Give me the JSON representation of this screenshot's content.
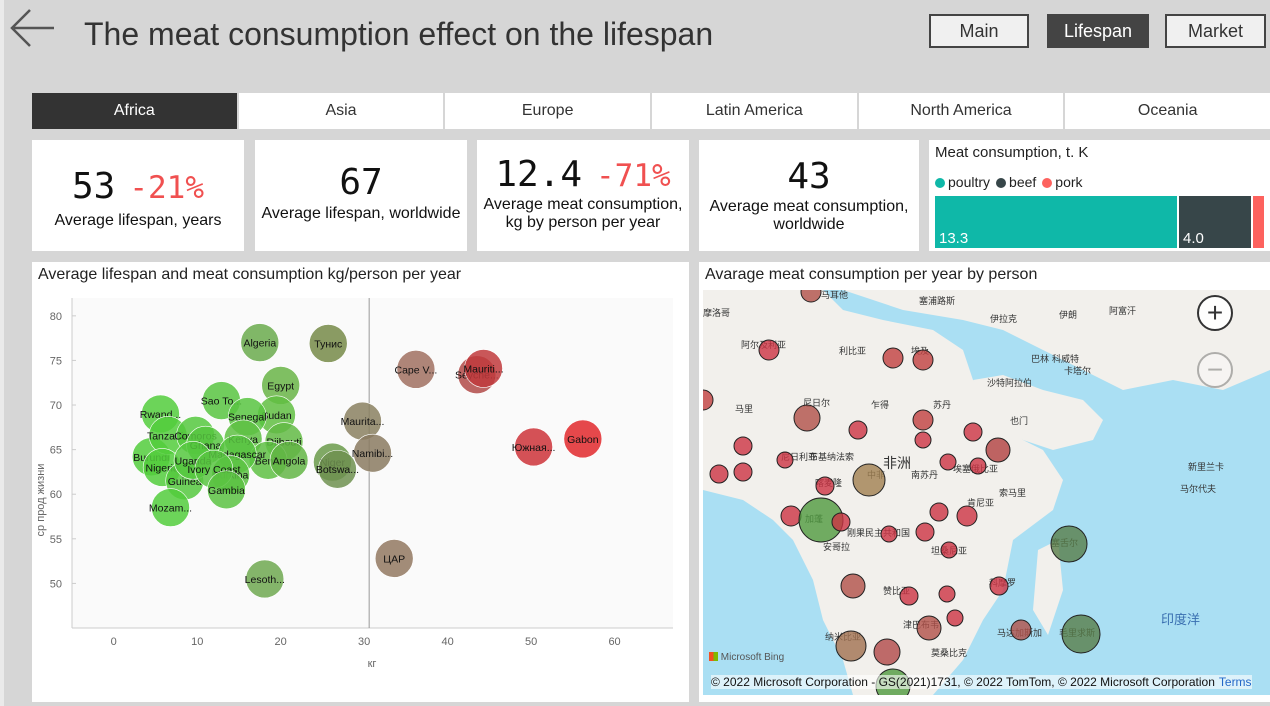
{
  "header": {
    "title": "The meat consumption effect on the lifespan",
    "nav": [
      {
        "label": "Main",
        "active": false
      },
      {
        "label": "Lifespan",
        "active": true
      },
      {
        "label": "Market",
        "active": false
      }
    ]
  },
  "tabs": [
    {
      "label": "Africa",
      "active": true
    },
    {
      "label": "Asia",
      "active": false
    },
    {
      "label": "Europe",
      "active": false
    },
    {
      "label": "Latin America",
      "active": false
    },
    {
      "label": "North America",
      "active": false
    },
    {
      "label": "Oceania",
      "active": false
    }
  ],
  "kpis": {
    "lifespan": {
      "value": "53",
      "delta": "-21%",
      "label": "Average lifespan, years"
    },
    "lifespan_world": {
      "value": "67",
      "label": "Average lifespan, worldwide"
    },
    "meat": {
      "value": "12.4",
      "delta": "-71%",
      "label_line1": "Average meat consumption,",
      "label_line2": "kg by person per year"
    },
    "meat_world": {
      "value": "43",
      "label_line1": "Average meat consumption,",
      "label_line2": "worldwide"
    }
  },
  "meat_panel": {
    "title": "Meat consumption, t. K",
    "legend": [
      "poultry",
      "beef",
      "pork"
    ],
    "colors": {
      "poultry": "#0fb8a8",
      "beef": "#374649",
      "pork": "#fd625e"
    },
    "values_display": [
      "13.3",
      "4.0",
      ""
    ]
  },
  "chart_data": {
    "type": "scatter",
    "title": "Average lifespan and meat consumption kg/person per year",
    "xlabel": "кг",
    "ylabel": "ср прод жизни",
    "xlim": [
      -5,
      67
    ],
    "ylim": [
      45,
      82
    ],
    "xticks": [
      0,
      10,
      20,
      30,
      40,
      50,
      60
    ],
    "yticks": [
      50,
      55,
      60,
      65,
      70,
      75,
      80
    ],
    "reference_x": 30.6,
    "points": [
      {
        "label": "Algeria",
        "x": 17.5,
        "y": 77.0,
        "color": "#6aaa4c"
      },
      {
        "label": "Тунис",
        "x": 25.7,
        "y": 76.9,
        "color": "#758a48"
      },
      {
        "label": "Egypt",
        "x": 20.0,
        "y": 72.2,
        "color": "#68b447"
      },
      {
        "label": "Sao To...",
        "x": 12.9,
        "y": 70.5,
        "color": "#58c441"
      },
      {
        "label": "Sudan",
        "x": 19.5,
        "y": 68.9,
        "color": "#60be42"
      },
      {
        "label": "Rwand...",
        "x": 5.6,
        "y": 69.0,
        "color": "#52cc3c"
      },
      {
        "label": "Senegal",
        "x": 16.0,
        "y": 68.7,
        "color": "#58c441"
      },
      {
        "label": "Kenya",
        "x": 15.5,
        "y": 66.2,
        "color": "#5ec043"
      },
      {
        "label": "Djibouti",
        "x": 20.4,
        "y": 65.9,
        "color": "#62ba44"
      },
      {
        "label": "Benin",
        "x": 18.5,
        "y": 63.8,
        "color": "#5ec043"
      },
      {
        "label": "Angola",
        "x": 21.0,
        "y": 63.8,
        "color": "#63b545"
      },
      {
        "label": "Niger",
        "x": 26.2,
        "y": 63.6,
        "color": "#6a9a4a"
      },
      {
        "label": "Botswa...",
        "x": 26.8,
        "y": 62.8,
        "color": "#6e9050"
      },
      {
        "label": "Maurita...",
        "x": 29.8,
        "y": 68.2,
        "color": "#8a8060"
      },
      {
        "label": "Namibi...",
        "x": 31.0,
        "y": 64.6,
        "color": "#8a7a60"
      },
      {
        "label": "Burundi",
        "x": 4.5,
        "y": 64.2,
        "color": "#52cc3c"
      },
      {
        "label": "Tanzania",
        "x": 6.5,
        "y": 66.6,
        "color": "#52cc3c"
      },
      {
        "label": "Comoros",
        "x": 9.8,
        "y": 66.6,
        "color": "#55c83e"
      },
      {
        "label": "Ghana",
        "x": 11.0,
        "y": 65.5,
        "color": "#56c63f"
      },
      {
        "label": "Nigeria",
        "x": 5.8,
        "y": 63.0,
        "color": "#52cc3c"
      },
      {
        "label": "Guinea",
        "x": 8.5,
        "y": 61.5,
        "color": "#55c83e"
      },
      {
        "label": "Uganda",
        "x": 9.5,
        "y": 63.8,
        "color": "#55c83e"
      },
      {
        "label": "Madagascar",
        "x": 14.8,
        "y": 64.5,
        "color": "#58c441"
      },
      {
        "label": "Burkina",
        "x": 14.0,
        "y": 62.2,
        "color": "#5bc242"
      },
      {
        "label": "Ivory Coast",
        "x": 12.0,
        "y": 62.8,
        "color": "#58c441"
      },
      {
        "label": "Gambia",
        "x": 13.5,
        "y": 60.5,
        "color": "#5bc242"
      },
      {
        "label": "Mozam...",
        "x": 6.8,
        "y": 58.5,
        "color": "#52cc3c"
      },
      {
        "label": "Cape V...",
        "x": 36.2,
        "y": 74.0,
        "color": "#a07060"
      },
      {
        "label": "Seyche...",
        "x": 43.5,
        "y": 73.4,
        "color": "#b04a48"
      },
      {
        "label": "Mauriti...",
        "x": 44.3,
        "y": 74.1,
        "color": "#c0393c"
      },
      {
        "label": "Южная...",
        "x": 50.3,
        "y": 65.3,
        "color": "#cc3338"
      },
      {
        "label": "Gabon",
        "x": 56.2,
        "y": 66.2,
        "color": "#e0282c"
      },
      {
        "label": "ЦАР",
        "x": 33.6,
        "y": 52.8,
        "color": "#927860"
      },
      {
        "label": "Lesoth...",
        "x": 18.1,
        "y": 50.5,
        "color": "#6ea850"
      }
    ]
  },
  "map": {
    "title": "Avarage meat consumption per year by person",
    "zoom_in": "+",
    "zoom_out": "−",
    "bing": "Microsoft Bing",
    "attribution": "© 2022 Microsoft Corporation - GS(2021)1731, © 2022 TomTom, © 2022 Microsoft Corporation",
    "terms": "Terms",
    "labels": [
      {
        "t": "马耳他"
      },
      {
        "t": "塞浦路斯"
      },
      {
        "t": "摩洛哥"
      },
      {
        "t": "伊拉克"
      },
      {
        "t": "伊朗"
      },
      {
        "t": "阿富汗"
      },
      {
        "t": "阿尔及利亚"
      },
      {
        "t": "利比亚"
      },
      {
        "t": "埃及"
      },
      {
        "t": "巴林"
      },
      {
        "t": "科威特"
      },
      {
        "t": "卡塔尔"
      },
      {
        "t": "沙特阿拉伯"
      },
      {
        "t": "马里"
      },
      {
        "t": "尼日尔"
      },
      {
        "t": "乍得"
      },
      {
        "t": "苏丹"
      },
      {
        "t": "也门"
      },
      {
        "t": "尼日利亚"
      },
      {
        "t": "布基纳法索"
      },
      {
        "t": "喀麦隆"
      },
      {
        "t": "非洲"
      },
      {
        "t": "中非"
      },
      {
        "t": "南苏丹"
      },
      {
        "t": "埃塞俄比亚"
      },
      {
        "t": "索马里"
      },
      {
        "t": "加蓬"
      },
      {
        "t": "刚果民主共和国"
      },
      {
        "t": "安哥拉"
      },
      {
        "t": "坦桑尼亚"
      },
      {
        "t": "赞比亚"
      },
      {
        "t": "津巴布韦"
      },
      {
        "t": "纳米比亚"
      },
      {
        "t": "莫桑比克"
      },
      {
        "t": "马达加斯加"
      },
      {
        "t": "塞舌尔"
      },
      {
        "t": "毛里求斯"
      },
      {
        "t": "印度洋"
      },
      {
        "t": "新里兰卡"
      },
      {
        "t": "马尔代夫"
      },
      {
        "t": "肯尼亚"
      },
      {
        "t": "科摩罗"
      }
    ],
    "bubbles": [
      {
        "label": "Malta",
        "color": "#b04040"
      },
      {
        "label": "Algeria",
        "color": "#b04040"
      },
      {
        "label": "Egypt",
        "color": "#b04040"
      },
      {
        "label": "Mali",
        "color": "#b04040"
      }
    ]
  }
}
